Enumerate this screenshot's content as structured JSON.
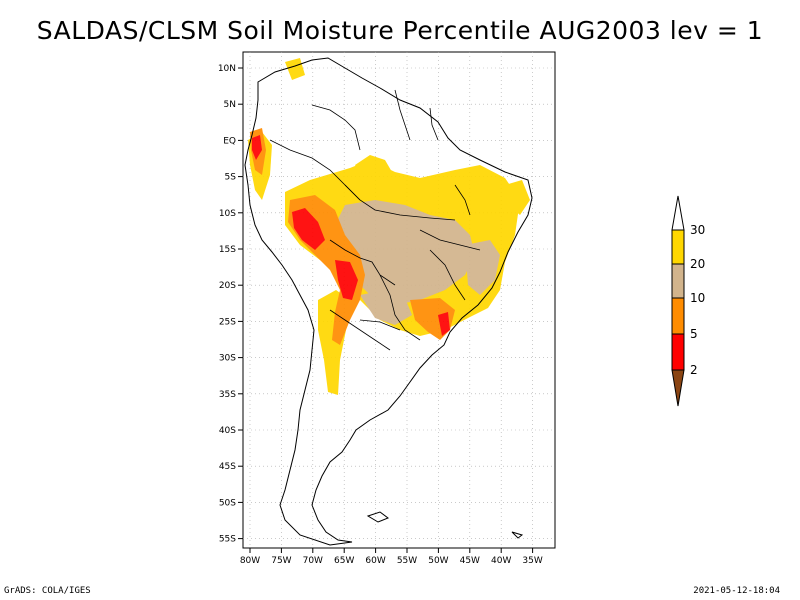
{
  "title": "SALDAS/CLSM Soil Moisture Percentile AUG2003 lev = 1",
  "footer": {
    "left": "GrADS: COLA/IGES",
    "right": "2021-05-12-18:04"
  },
  "axes": {
    "lat_ticks": [
      "10N",
      "5N",
      "EQ",
      "5S",
      "10S",
      "15S",
      "20S",
      "25S",
      "30S",
      "35S",
      "40S",
      "45S",
      "50S",
      "55S"
    ],
    "lon_ticks": [
      "80W",
      "75W",
      "70W",
      "65W",
      "60W",
      "55W",
      "50W",
      "45W",
      "40W",
      "35W"
    ]
  },
  "colorbar": {
    "labels": [
      "30",
      "20",
      "10",
      "5",
      "2"
    ],
    "colors": {
      "above_30": "#ffffff",
      "20_30": "#ffd700",
      "10_20": "#d2b48c",
      "5_10": "#ff8c00",
      "2_5": "#ff0000",
      "below_2": "#8b4513"
    }
  },
  "colors": {
    "red": "#ff0000",
    "orange": "#ff8c00",
    "tan": "#d2b48c",
    "gold": "#ffd700"
  }
}
